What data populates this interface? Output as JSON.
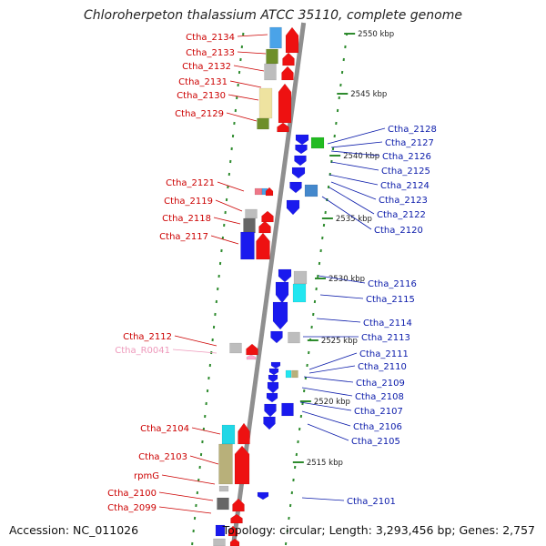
{
  "title": "Chloroherpeton thalassium ATCC 35110, complete genome",
  "footer": {
    "accession": "Accession: NC_011026",
    "topology": "Topology: circular; Length: 3,293,456 bp; Genes: 2,757"
  },
  "colors": {
    "forward_label": "#cc0000",
    "reverse_label": "#0a1aaa",
    "rna_label": "#ee99bb",
    "backbone": "#8f8f8f",
    "tick": "#2e8b2e"
  },
  "kbp_ticks": [
    "2550 kbp",
    "2545 kbp",
    "2540 kbp",
    "2535 kbp",
    "2530 kbp",
    "2525 kbp",
    "2520 kbp",
    "2515 kbp"
  ],
  "forward_labels": [
    "Ctha_2134",
    "Ctha_2133",
    "Ctha_2132",
    "Ctha_2131",
    "Ctha_2130",
    "Ctha_2129",
    "Ctha_2121",
    "Ctha_2119",
    "Ctha_2118",
    "Ctha_2117",
    "Ctha_2112",
    "Ctha_R0041",
    "Ctha_2104",
    "Ctha_2103",
    "rpmG",
    "Ctha_2100",
    "Ctha_2099"
  ],
  "reverse_labels": [
    "Ctha_2128",
    "Ctha_2127",
    "Ctha_2126",
    "Ctha_2125",
    "Ctha_2124",
    "Ctha_2123",
    "Ctha_2122",
    "Ctha_2120",
    "Ctha_2116",
    "Ctha_2115",
    "Ctha_2114",
    "Ctha_2113",
    "Ctha_2111",
    "Ctha_2110",
    "Ctha_2109",
    "Ctha_2108",
    "Ctha_2107",
    "Ctha_2106",
    "Ctha_2105",
    "Ctha_2101"
  ]
}
